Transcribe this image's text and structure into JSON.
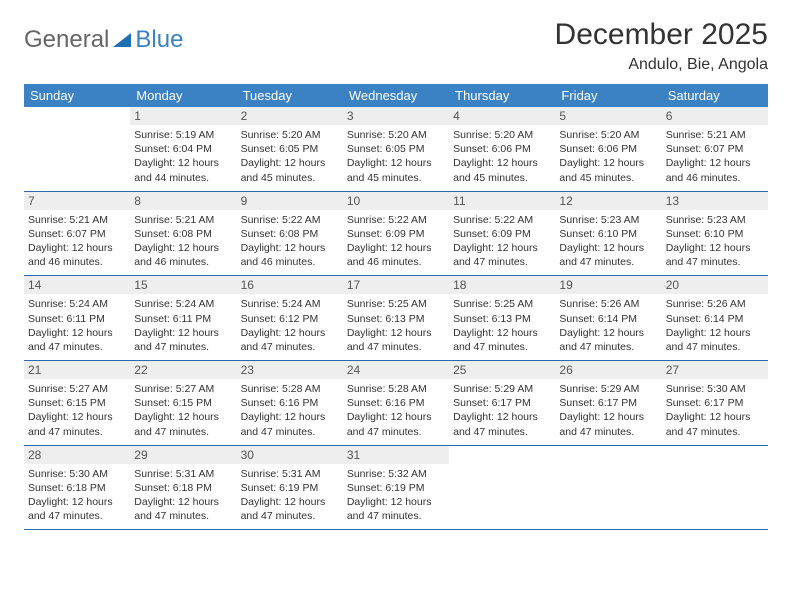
{
  "logo": {
    "text1": "General",
    "text2": "Blue"
  },
  "title": "December 2025",
  "location": "Andulo, Bie, Angola",
  "colors": {
    "header_bg": "#3b82c4",
    "header_text": "#ffffff",
    "daynum_bg": "#eeeeee",
    "row_border": "#2a6aa8",
    "body_text": "#333333"
  },
  "day_headers": [
    "Sunday",
    "Monday",
    "Tuesday",
    "Wednesday",
    "Thursday",
    "Friday",
    "Saturday"
  ],
  "weeks": [
    [
      {
        "day": "",
        "sunrise": "",
        "sunset": "",
        "daylight": ""
      },
      {
        "day": "1",
        "sunrise": "Sunrise: 5:19 AM",
        "sunset": "Sunset: 6:04 PM",
        "daylight": "Daylight: 12 hours and 44 minutes."
      },
      {
        "day": "2",
        "sunrise": "Sunrise: 5:20 AM",
        "sunset": "Sunset: 6:05 PM",
        "daylight": "Daylight: 12 hours and 45 minutes."
      },
      {
        "day": "3",
        "sunrise": "Sunrise: 5:20 AM",
        "sunset": "Sunset: 6:05 PM",
        "daylight": "Daylight: 12 hours and 45 minutes."
      },
      {
        "day": "4",
        "sunrise": "Sunrise: 5:20 AM",
        "sunset": "Sunset: 6:06 PM",
        "daylight": "Daylight: 12 hours and 45 minutes."
      },
      {
        "day": "5",
        "sunrise": "Sunrise: 5:20 AM",
        "sunset": "Sunset: 6:06 PM",
        "daylight": "Daylight: 12 hours and 45 minutes."
      },
      {
        "day": "6",
        "sunrise": "Sunrise: 5:21 AM",
        "sunset": "Sunset: 6:07 PM",
        "daylight": "Daylight: 12 hours and 46 minutes."
      }
    ],
    [
      {
        "day": "7",
        "sunrise": "Sunrise: 5:21 AM",
        "sunset": "Sunset: 6:07 PM",
        "daylight": "Daylight: 12 hours and 46 minutes."
      },
      {
        "day": "8",
        "sunrise": "Sunrise: 5:21 AM",
        "sunset": "Sunset: 6:08 PM",
        "daylight": "Daylight: 12 hours and 46 minutes."
      },
      {
        "day": "9",
        "sunrise": "Sunrise: 5:22 AM",
        "sunset": "Sunset: 6:08 PM",
        "daylight": "Daylight: 12 hours and 46 minutes."
      },
      {
        "day": "10",
        "sunrise": "Sunrise: 5:22 AM",
        "sunset": "Sunset: 6:09 PM",
        "daylight": "Daylight: 12 hours and 46 minutes."
      },
      {
        "day": "11",
        "sunrise": "Sunrise: 5:22 AM",
        "sunset": "Sunset: 6:09 PM",
        "daylight": "Daylight: 12 hours and 47 minutes."
      },
      {
        "day": "12",
        "sunrise": "Sunrise: 5:23 AM",
        "sunset": "Sunset: 6:10 PM",
        "daylight": "Daylight: 12 hours and 47 minutes."
      },
      {
        "day": "13",
        "sunrise": "Sunrise: 5:23 AM",
        "sunset": "Sunset: 6:10 PM",
        "daylight": "Daylight: 12 hours and 47 minutes."
      }
    ],
    [
      {
        "day": "14",
        "sunrise": "Sunrise: 5:24 AM",
        "sunset": "Sunset: 6:11 PM",
        "daylight": "Daylight: 12 hours and 47 minutes."
      },
      {
        "day": "15",
        "sunrise": "Sunrise: 5:24 AM",
        "sunset": "Sunset: 6:11 PM",
        "daylight": "Daylight: 12 hours and 47 minutes."
      },
      {
        "day": "16",
        "sunrise": "Sunrise: 5:24 AM",
        "sunset": "Sunset: 6:12 PM",
        "daylight": "Daylight: 12 hours and 47 minutes."
      },
      {
        "day": "17",
        "sunrise": "Sunrise: 5:25 AM",
        "sunset": "Sunset: 6:13 PM",
        "daylight": "Daylight: 12 hours and 47 minutes."
      },
      {
        "day": "18",
        "sunrise": "Sunrise: 5:25 AM",
        "sunset": "Sunset: 6:13 PM",
        "daylight": "Daylight: 12 hours and 47 minutes."
      },
      {
        "day": "19",
        "sunrise": "Sunrise: 5:26 AM",
        "sunset": "Sunset: 6:14 PM",
        "daylight": "Daylight: 12 hours and 47 minutes."
      },
      {
        "day": "20",
        "sunrise": "Sunrise: 5:26 AM",
        "sunset": "Sunset: 6:14 PM",
        "daylight": "Daylight: 12 hours and 47 minutes."
      }
    ],
    [
      {
        "day": "21",
        "sunrise": "Sunrise: 5:27 AM",
        "sunset": "Sunset: 6:15 PM",
        "daylight": "Daylight: 12 hours and 47 minutes."
      },
      {
        "day": "22",
        "sunrise": "Sunrise: 5:27 AM",
        "sunset": "Sunset: 6:15 PM",
        "daylight": "Daylight: 12 hours and 47 minutes."
      },
      {
        "day": "23",
        "sunrise": "Sunrise: 5:28 AM",
        "sunset": "Sunset: 6:16 PM",
        "daylight": "Daylight: 12 hours and 47 minutes."
      },
      {
        "day": "24",
        "sunrise": "Sunrise: 5:28 AM",
        "sunset": "Sunset: 6:16 PM",
        "daylight": "Daylight: 12 hours and 47 minutes."
      },
      {
        "day": "25",
        "sunrise": "Sunrise: 5:29 AM",
        "sunset": "Sunset: 6:17 PM",
        "daylight": "Daylight: 12 hours and 47 minutes."
      },
      {
        "day": "26",
        "sunrise": "Sunrise: 5:29 AM",
        "sunset": "Sunset: 6:17 PM",
        "daylight": "Daylight: 12 hours and 47 minutes."
      },
      {
        "day": "27",
        "sunrise": "Sunrise: 5:30 AM",
        "sunset": "Sunset: 6:17 PM",
        "daylight": "Daylight: 12 hours and 47 minutes."
      }
    ],
    [
      {
        "day": "28",
        "sunrise": "Sunrise: 5:30 AM",
        "sunset": "Sunset: 6:18 PM",
        "daylight": "Daylight: 12 hours and 47 minutes."
      },
      {
        "day": "29",
        "sunrise": "Sunrise: 5:31 AM",
        "sunset": "Sunset: 6:18 PM",
        "daylight": "Daylight: 12 hours and 47 minutes."
      },
      {
        "day": "30",
        "sunrise": "Sunrise: 5:31 AM",
        "sunset": "Sunset: 6:19 PM",
        "daylight": "Daylight: 12 hours and 47 minutes."
      },
      {
        "day": "31",
        "sunrise": "Sunrise: 5:32 AM",
        "sunset": "Sunset: 6:19 PM",
        "daylight": "Daylight: 12 hours and 47 minutes."
      },
      {
        "day": "",
        "sunrise": "",
        "sunset": "",
        "daylight": ""
      },
      {
        "day": "",
        "sunrise": "",
        "sunset": "",
        "daylight": ""
      },
      {
        "day": "",
        "sunrise": "",
        "sunset": "",
        "daylight": ""
      }
    ]
  ]
}
